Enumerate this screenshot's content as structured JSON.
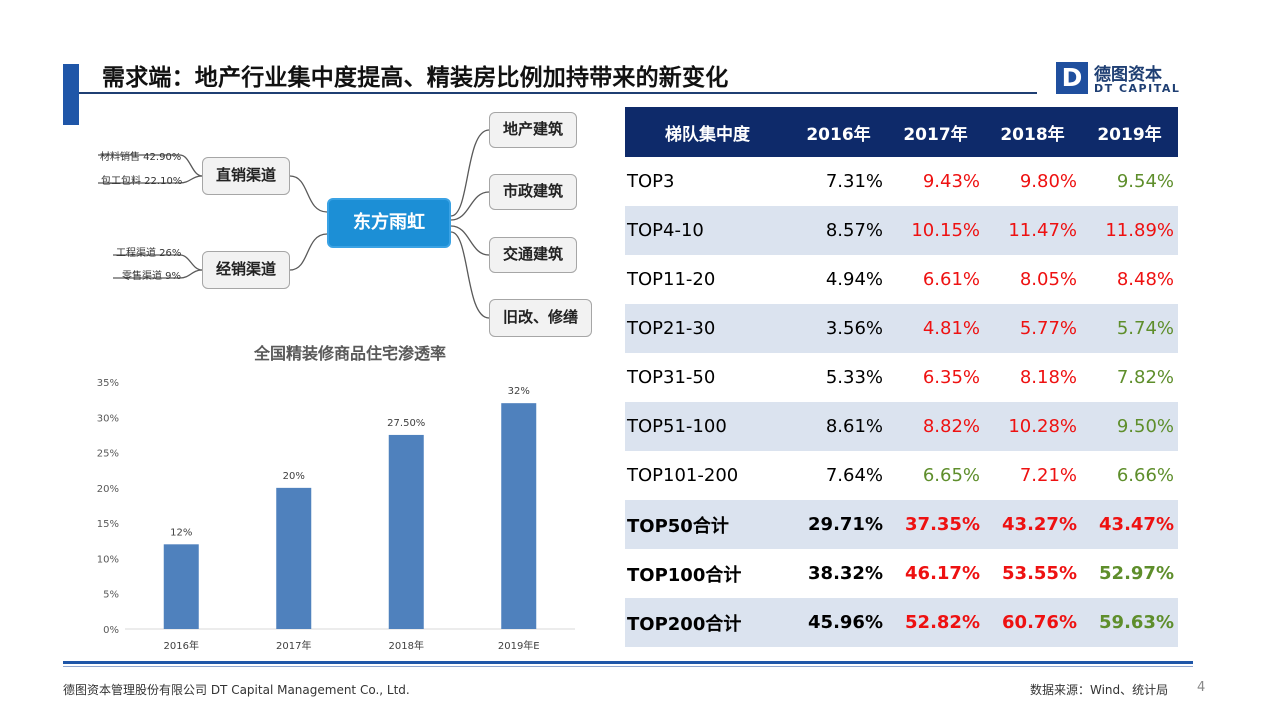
{
  "title": "需求端：地产行业集中度提高、精装房比例加持带来的新变化",
  "logo": {
    "cn": "德图资本",
    "en": "DT CAPITAL",
    "mark": "D"
  },
  "mindmap": {
    "center": "东方雨虹",
    "left_nodes": [
      {
        "label": "直销渠道",
        "items": [
          "材料销售 42.90%",
          "包工包料 22.10%"
        ]
      },
      {
        "label": "经销渠道",
        "items": [
          "工程渠道 26%",
          "零售渠道 9%"
        ]
      }
    ],
    "right_nodes": [
      "地产建筑",
      "市政建筑",
      "交通建筑",
      "旧改、修缮"
    ]
  },
  "chart_data": {
    "type": "bar",
    "title": "全国精装修商品住宅渗透率",
    "categories": [
      "2016年",
      "2017年",
      "2018年",
      "2019年E"
    ],
    "values": [
      12,
      20,
      27.5,
      32
    ],
    "data_labels": [
      "12%",
      "20%",
      "27.50%",
      "32%"
    ],
    "y_ticks": [
      "0%",
      "5%",
      "10%",
      "15%",
      "20%",
      "25%",
      "30%",
      "35%"
    ],
    "ylim": [
      0,
      35
    ],
    "grid": false,
    "legend": "none",
    "bar_color": "#4f81bd"
  },
  "table": {
    "headers": [
      "梯队集中度",
      "2016年",
      "2017年",
      "2018年",
      "2019年"
    ],
    "rows": [
      {
        "cells": [
          "TOP3",
          "7.31%",
          "9.43%",
          "9.80%",
          "9.54%"
        ],
        "colors": [
          "black",
          "black",
          "red",
          "red",
          "green"
        ],
        "bold": false
      },
      {
        "cells": [
          "TOP4-10",
          "8.57%",
          "10.15%",
          "11.47%",
          "11.89%"
        ],
        "colors": [
          "black",
          "black",
          "red",
          "red",
          "red"
        ],
        "bold": false
      },
      {
        "cells": [
          "TOP11-20",
          "4.94%",
          "6.61%",
          "8.05%",
          "8.48%"
        ],
        "colors": [
          "black",
          "black",
          "red",
          "red",
          "red"
        ],
        "bold": false
      },
      {
        "cells": [
          "TOP21-30",
          "3.56%",
          "4.81%",
          "5.77%",
          "5.74%"
        ],
        "colors": [
          "black",
          "black",
          "red",
          "red",
          "green"
        ],
        "bold": false
      },
      {
        "cells": [
          "TOP31-50",
          "5.33%",
          "6.35%",
          "8.18%",
          "7.82%"
        ],
        "colors": [
          "black",
          "black",
          "red",
          "red",
          "green"
        ],
        "bold": false
      },
      {
        "cells": [
          "TOP51-100",
          "8.61%",
          "8.82%",
          "10.28%",
          "9.50%"
        ],
        "colors": [
          "black",
          "black",
          "red",
          "red",
          "green"
        ],
        "bold": false
      },
      {
        "cells": [
          "TOP101-200",
          "7.64%",
          "6.65%",
          "7.21%",
          "6.66%"
        ],
        "colors": [
          "black",
          "black",
          "green",
          "red",
          "green"
        ],
        "bold": false
      },
      {
        "cells": [
          "TOP50合计",
          "29.71%",
          "37.35%",
          "43.27%",
          "43.47%"
        ],
        "colors": [
          "black",
          "black",
          "red",
          "red",
          "red"
        ],
        "bold": true
      },
      {
        "cells": [
          "TOP100合计",
          "38.32%",
          "46.17%",
          "53.55%",
          "52.97%"
        ],
        "colors": [
          "black",
          "black",
          "red",
          "red",
          "green"
        ],
        "bold": true
      },
      {
        "cells": [
          "TOP200合计",
          "45.96%",
          "52.82%",
          "60.76%",
          "59.63%"
        ],
        "colors": [
          "black",
          "black",
          "red",
          "red",
          "green"
        ],
        "bold": true
      }
    ]
  },
  "colors": {
    "brand_blue": "#1f56a8",
    "header_navy": "#0e2a6a",
    "row_alt": "#dbe3ef",
    "red": "#ee1111",
    "green": "#5e8e2b"
  },
  "footer": {
    "company": "德图资本管理股份有限公司  DT Capital Management  Co., Ltd.",
    "source": "数据来源：Wind、统计局",
    "page": "4"
  }
}
